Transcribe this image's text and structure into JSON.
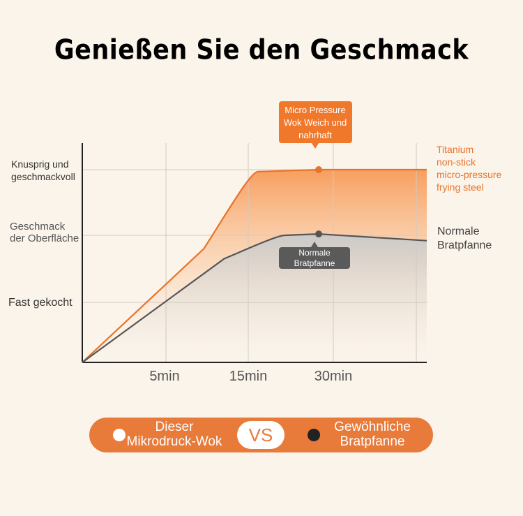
{
  "title": "Genießen Sie den Geschmack",
  "chart_data": {
    "type": "line",
    "x_ticks": [
      "5min",
      "15min",
      "30min"
    ],
    "y_levels": [
      "Fast gekocht",
      "Geschmack der Oberfläche",
      "Knusprig und geschmackvoll"
    ],
    "y_labels_lines": {
      "top": [
        "Knusprig und",
        "geschmackvoll"
      ],
      "mid": [
        "Geschmack",
        "der Oberfläche"
      ],
      "low": [
        "Fast gekocht"
      ]
    },
    "series": [
      {
        "name": "Titanium non-stick micro-pressure frying steel",
        "label_lines": [
          "Titanium",
          "non-stick",
          "micro-pressure",
          "frying steel"
        ],
        "color": "#e8732a",
        "points": [
          [
            0,
            0
          ],
          [
            1.8,
            1.8
          ],
          [
            2.6,
            2.97
          ],
          [
            3.5,
            3.0
          ],
          [
            5.1,
            3.0
          ]
        ],
        "marker_x": 3.5,
        "callout_lines": [
          "Micro Pressure",
          "Wok Weich und",
          "nahrhaft"
        ]
      },
      {
        "name": "Normale Bratpfanne",
        "label_lines": [
          "Normale",
          "Bratpfanne"
        ],
        "color": "#555555",
        "points": [
          [
            0,
            0
          ],
          [
            2.1,
            1.65
          ],
          [
            3.0,
            2.0
          ],
          [
            3.5,
            2.02
          ],
          [
            5.1,
            1.92
          ]
        ],
        "marker_x": 3.5,
        "callout_lines": [
          "Normale",
          "Bratpfanne"
        ]
      }
    ],
    "xlim": [
      0,
      5.1
    ],
    "ylim": [
      0,
      3.2
    ],
    "grid": true
  },
  "legend": {
    "left_lines": [
      "Dieser",
      "Mikrodruck-Wok"
    ],
    "vs": "VS",
    "right_lines": [
      "Gewöhnliche",
      "Bratpfanne"
    ]
  },
  "colors": {
    "accent": "#e87a3a",
    "background": "#fbf4ea",
    "grey": "#555555"
  }
}
